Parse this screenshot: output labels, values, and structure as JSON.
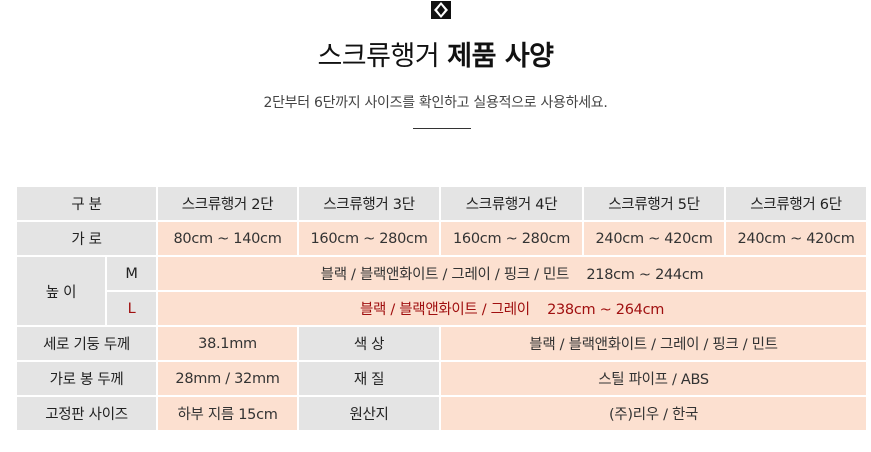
{
  "header": {
    "logo_icon": "diamond-knot-icon",
    "title_light": "스크류행거",
    "title_bold": "제품 사양",
    "subtitle": "2단부터 6단까지 사이즈를 확인하고 실용적으로 사용하세요."
  },
  "colors": {
    "label_bg": "#e4e4e4",
    "value_bg": "#fce0d0",
    "highlight_text": "#a01010"
  },
  "spec": {
    "division": {
      "label": "구 분",
      "models": [
        "스크류행거 2단",
        "스크류행거 3단",
        "스크류행거 4단",
        "스크류행거 5단",
        "스크류행거 6단"
      ]
    },
    "width": {
      "label": "가 로",
      "values": [
        "80cm ~ 140cm",
        "160cm ~ 280cm",
        "160cm ~ 280cm",
        "240cm ~ 420cm",
        "240cm ~ 420cm"
      ]
    },
    "height": {
      "label": "높 이",
      "m": {
        "size": "M",
        "colors": "블랙 / 블랙앤화이트 / 그레이 / 핑크 / 민트",
        "range": "218cm ~ 244cm"
      },
      "l": {
        "size": "L",
        "colors": "블랙 / 블랙앤화이트 / 그레이",
        "range": "238cm ~ 264cm"
      }
    },
    "pillar": {
      "label": "세로 기둥 두께",
      "value": "38.1mm"
    },
    "color": {
      "label": "색 상",
      "value": "블랙 / 블랙앤화이트 / 그레이 / 핑크 / 민트"
    },
    "bar": {
      "label": "가로 봉 두께",
      "value": "28mm / 32mm"
    },
    "material": {
      "label": "재 질",
      "value": "스틸 파이프 / ABS"
    },
    "fixing": {
      "label": "고정판 사이즈",
      "value": "하부 지름 15cm"
    },
    "origin": {
      "label": "원산지",
      "value": "(주)리우 / 한국"
    }
  }
}
